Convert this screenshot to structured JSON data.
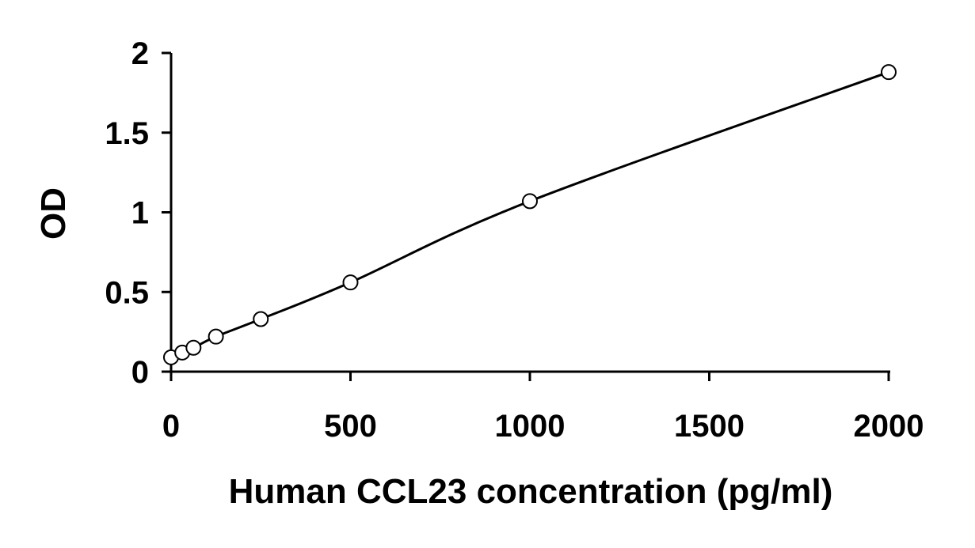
{
  "chart_data": {
    "type": "scatter",
    "xlabel": "Human CCL23 concentration (pg/ml)",
    "ylabel": "OD",
    "xlim": [
      0,
      2000
    ],
    "ylim": [
      0,
      2
    ],
    "xticks": [
      0,
      500,
      1000,
      1500,
      2000
    ],
    "yticks": [
      0,
      0.5,
      1,
      1.5,
      2
    ],
    "xtick_labels": [
      "0",
      "500",
      "1000",
      "1500",
      "2000"
    ],
    "ytick_labels": [
      "0",
      "0.5",
      "1",
      "1.5",
      "2"
    ],
    "grid": false,
    "legend": "none",
    "marker": "open-circle",
    "fit_line": "smooth curve through points",
    "series": [
      {
        "x": [
          0,
          31.25,
          62.5,
          125,
          250,
          500,
          1000,
          2000
        ],
        "y": [
          0.09,
          0.12,
          0.15,
          0.22,
          0.33,
          0.56,
          1.07,
          1.88
        ]
      }
    ]
  }
}
